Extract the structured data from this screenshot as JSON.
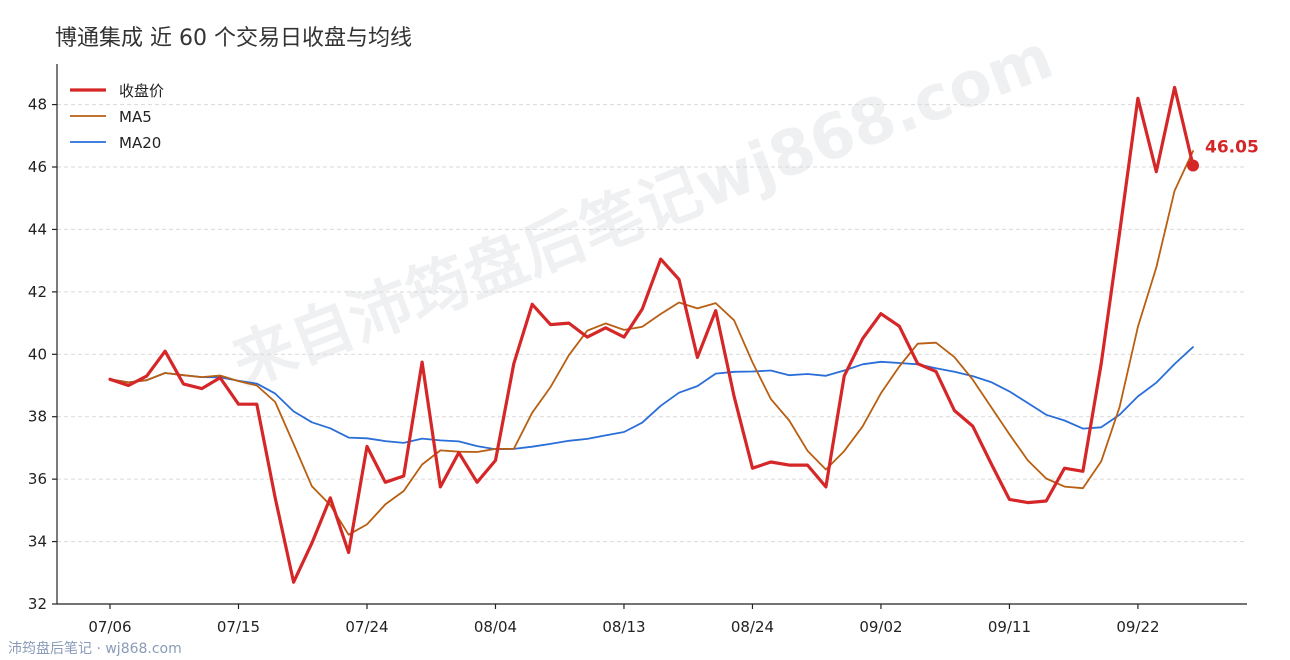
{
  "title": "博通集成 近 60 个交易日收盘与均线",
  "watermark": "来自沛筠盘后笔记wj868.com",
  "footer": "沛筠盘后笔记 · wj868.com",
  "chart_data": {
    "type": "line",
    "xlabel": "",
    "ylabel": "",
    "ylim": [
      32,
      49.3
    ],
    "yticks": [
      32,
      34,
      36,
      38,
      40,
      42,
      44,
      46,
      48
    ],
    "x_tick_labels": [
      {
        "index": 0,
        "label": "07/06"
      },
      {
        "index": 7,
        "label": "07/15"
      },
      {
        "index": 14,
        "label": "07/24"
      },
      {
        "index": 21,
        "label": "08/04"
      },
      {
        "index": 28,
        "label": "08/13"
      },
      {
        "index": 35,
        "label": "08/24"
      },
      {
        "index": 42,
        "label": "09/02"
      },
      {
        "index": 49,
        "label": "09/11"
      },
      {
        "index": 56,
        "label": "09/22"
      }
    ],
    "legend_position": "top-left",
    "grid": "horizontal dashed",
    "last_value_label": "46.05",
    "series": [
      {
        "name": "收盘价",
        "color": "#d62728",
        "values": [
          39.2,
          39.0,
          39.3,
          40.1,
          39.05,
          38.9,
          39.25,
          38.4,
          38.4,
          35.4,
          32.7,
          33.95,
          35.4,
          33.65,
          37.05,
          35.9,
          36.1,
          39.75,
          35.75,
          36.85,
          35.9,
          36.6,
          39.7,
          41.6,
          40.95,
          41.0,
          40.55,
          40.85,
          40.55,
          41.45,
          43.05,
          42.4,
          39.9,
          41.4,
          38.65,
          36.35,
          36.55,
          36.45,
          36.45,
          35.75,
          39.3,
          40.5,
          41.3,
          40.9,
          39.7,
          39.45,
          38.2,
          37.7,
          36.5,
          35.35,
          35.25,
          35.3,
          36.35,
          36.25,
          39.7,
          43.9,
          48.2,
          45.85,
          48.55,
          46.05
        ]
      },
      {
        "name": "MA5",
        "color": "#b85f12",
        "values": [
          39.2,
          39.1,
          39.17,
          39.4,
          39.33,
          39.27,
          39.32,
          39.14,
          39.0,
          38.47,
          37.13,
          35.77,
          35.17,
          34.22,
          34.55,
          35.19,
          35.62,
          36.47,
          36.92,
          36.88,
          36.87,
          36.97,
          36.97,
          38.13,
          38.95,
          39.97,
          40.76,
          40.99,
          40.78,
          40.88,
          41.29,
          41.66,
          41.47,
          41.64,
          41.09,
          39.74,
          38.57,
          37.88,
          36.91,
          36.31,
          36.9,
          37.69,
          38.75,
          39.61,
          40.34,
          40.37,
          39.91,
          39.19,
          38.31,
          37.44,
          36.6,
          36.02,
          35.76,
          35.71,
          36.57,
          38.31,
          40.88,
          42.78,
          45.24,
          46.51
        ]
      },
      {
        "name": "MA20",
        "color": "#2a6ed8",
        "values": [
          39.2,
          39.1,
          39.17,
          39.4,
          39.33,
          39.27,
          39.26,
          39.15,
          39.06,
          38.74,
          38.17,
          37.82,
          37.63,
          37.33,
          37.31,
          37.22,
          37.16,
          37.3,
          37.24,
          37.21,
          37.06,
          36.96,
          36.97,
          37.04,
          37.13,
          37.23,
          37.29,
          37.4,
          37.51,
          37.81,
          38.35,
          38.77,
          38.98,
          39.38,
          39.44,
          39.45,
          39.48,
          39.33,
          39.37,
          39.31,
          39.48,
          39.68,
          39.76,
          39.72,
          39.68,
          39.55,
          39.44,
          39.3,
          39.11,
          38.81,
          38.44,
          38.06,
          37.88,
          37.62,
          37.66,
          38.06,
          38.65,
          39.09,
          39.69,
          40.23
        ]
      }
    ]
  }
}
